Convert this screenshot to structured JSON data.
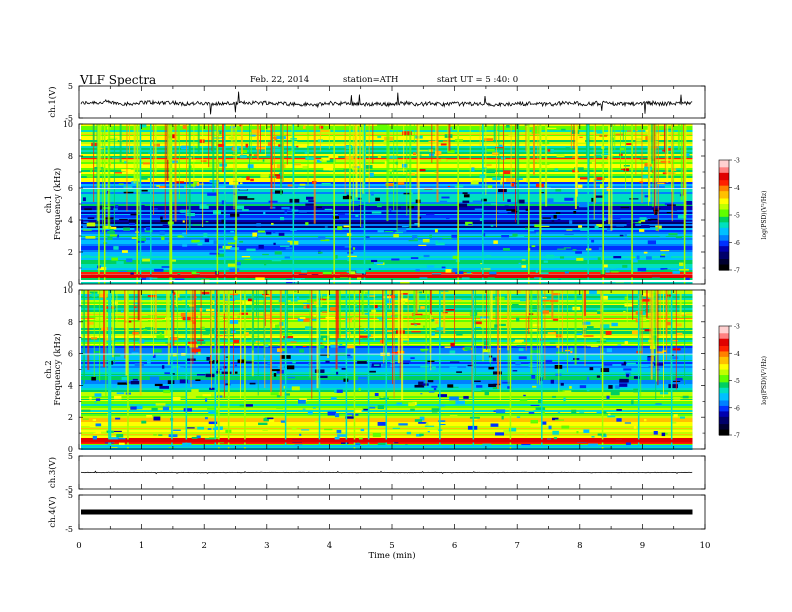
{
  "header": {
    "title": "VLF  Spectra",
    "date": "Feb. 22, 2014",
    "station": "station=ATH",
    "start": "start  UT  =   5  :40: 0"
  },
  "colorbar": {
    "label": "log(PSD)(V²/Hz)",
    "ticks": [
      "-3",
      "-4",
      "-5",
      "-6",
      "-7"
    ],
    "colors": [
      "#ffffff",
      "#ff9a9a",
      "#e60000",
      "#ff9900",
      "#ffff00",
      "#7fff00",
      "#00d080",
      "#00c0ff",
      "#0050ff",
      "#0000a0",
      "#000000"
    ]
  },
  "chart_data": [
    {
      "type": "line",
      "ylabel": "ch.1(V)",
      "ylim": [
        -5,
        5
      ],
      "yticks": [
        "5",
        "-5"
      ],
      "description_values": {
        "baseline": 0,
        "noise_amplitude": 1
      }
    },
    {
      "type": "heatmap",
      "ylabel": "ch.1",
      "ylabel2": "Frequency  (kHz)",
      "ylim": [
        0,
        10
      ],
      "yticks": [
        "0",
        "2",
        "4",
        "6",
        "8",
        "10"
      ],
      "zlim": [
        -7,
        -3
      ],
      "active_until_min": 9.8
    },
    {
      "type": "heatmap",
      "ylabel": "ch.2",
      "ylabel2": "Frequency  (kHz)",
      "ylim": [
        0,
        10
      ],
      "yticks": [
        "0",
        "2",
        "4",
        "6",
        "8",
        "10"
      ],
      "zlim": [
        -7,
        -3
      ],
      "active_until_min": 9.8
    },
    {
      "type": "line",
      "ylabel": "ch.3(V)",
      "ylim": [
        -5,
        5
      ],
      "yticks": [
        "5",
        "-5"
      ],
      "description_values": {
        "baseline": 0,
        "noise_amplitude": 0.1
      }
    },
    {
      "type": "line",
      "ylabel": "ch.4(V)",
      "ylim": [
        -5,
        5
      ],
      "yticks": [
        "5",
        "-5"
      ],
      "description_values": {
        "baseline": 0,
        "noise_amplitude": 0.6
      }
    }
  ],
  "xaxis": {
    "label": "Time  (min)",
    "xlim": [
      0,
      10
    ],
    "ticks": [
      "0",
      "1",
      "2",
      "3",
      "4",
      "5",
      "6",
      "7",
      "8",
      "9",
      "10"
    ]
  }
}
